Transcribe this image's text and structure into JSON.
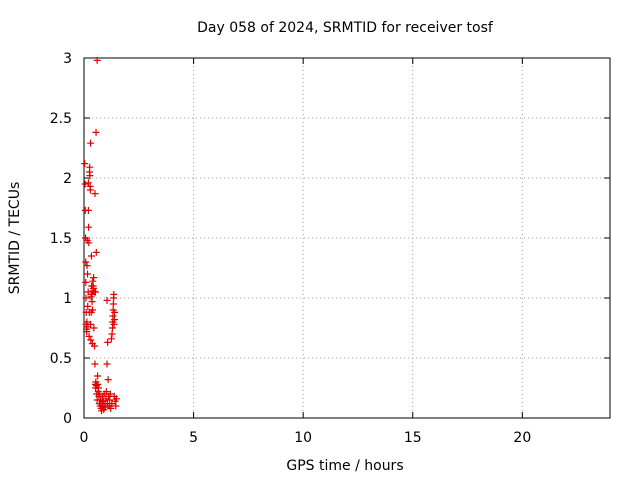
{
  "chart_data": {
    "type": "scatter",
    "title": "Day 058 of 2024, SRMTID for receiver tosf",
    "xlabel": "GPS time / hours",
    "ylabel": "SRMTID / TECUs",
    "xlim": [
      0,
      24
    ],
    "ylim": [
      0,
      3
    ],
    "xticks": [
      0,
      5,
      10,
      15,
      20
    ],
    "yticks": [
      0,
      0.5,
      1,
      1.5,
      2,
      2.5,
      3
    ],
    "grid": true,
    "legend": "none",
    "marker": "+",
    "color": "#e00000",
    "series": [
      {
        "points": [
          [
            0.03,
            2.12
          ],
          [
            0.05,
            1.95
          ],
          [
            0.06,
            1.73
          ],
          [
            0.07,
            1.5
          ],
          [
            0.08,
            1.3
          ],
          [
            0.08,
            1.13
          ],
          [
            0.09,
            1.0
          ],
          [
            0.1,
            0.88
          ],
          [
            0.1,
            0.78
          ],
          [
            0.11,
            0.74
          ],
          [
            0.12,
            0.72
          ],
          [
            0.13,
            0.8
          ],
          [
            0.14,
            1.27
          ],
          [
            0.15,
            1.48
          ],
          [
            0.16,
            1.2
          ],
          [
            0.17,
            0.93
          ],
          [
            0.18,
            0.76
          ],
          [
            0.19,
            1.05
          ],
          [
            0.2,
            1.73
          ],
          [
            0.2,
            1.96
          ],
          [
            0.21,
            1.59
          ],
          [
            0.22,
            1.46
          ],
          [
            0.23,
            0.68
          ],
          [
            0.24,
            0.88
          ],
          [
            0.25,
            2.05
          ],
          [
            0.26,
            2.09
          ],
          [
            0.27,
            2.02
          ],
          [
            0.28,
            1.93
          ],
          [
            0.29,
            1.9
          ],
          [
            0.3,
            2.29
          ],
          [
            0.3,
            0.78
          ],
          [
            0.31,
            0.65
          ],
          [
            0.32,
            1.01
          ],
          [
            0.33,
            0.88
          ],
          [
            0.34,
            1.35
          ],
          [
            0.35,
            1.1
          ],
          [
            0.36,
            1.03
          ],
          [
            0.37,
            0.97
          ],
          [
            0.38,
            0.62
          ],
          [
            0.39,
            0.9
          ],
          [
            0.4,
            1.14
          ],
          [
            0.41,
            1.06
          ],
          [
            0.42,
            1.1
          ],
          [
            0.43,
            1.08
          ],
          [
            0.44,
            1.17
          ],
          [
            0.45,
            0.75
          ],
          [
            0.46,
            1.05
          ],
          [
            0.48,
            0.6
          ],
          [
            0.5,
            1.87
          ],
          [
            0.5,
            0.45
          ],
          [
            0.52,
            1.05
          ],
          [
            0.52,
            0.28
          ],
          [
            0.53,
            0.25
          ],
          [
            0.54,
            0.3
          ],
          [
            0.55,
            2.38
          ],
          [
            0.56,
            1.38
          ],
          [
            0.57,
            0.27
          ],
          [
            0.58,
            0.2
          ],
          [
            0.6,
            2.98
          ],
          [
            0.6,
            0.15
          ],
          [
            0.62,
            0.35
          ],
          [
            0.63,
            0.28
          ],
          [
            0.65,
            0.22
          ],
          [
            0.66,
            0.25
          ],
          [
            0.68,
            0.18
          ],
          [
            0.7,
            0.12
          ],
          [
            0.72,
            0.2
          ],
          [
            0.74,
            0.1
          ],
          [
            0.76,
            0.15
          ],
          [
            0.78,
            0.08
          ],
          [
            0.8,
            0.06
          ],
          [
            0.82,
            0.12
          ],
          [
            0.84,
            0.18
          ],
          [
            0.86,
            0.1
          ],
          [
            0.88,
            0.14
          ],
          [
            0.9,
            0.07
          ],
          [
            0.92,
            0.2
          ],
          [
            0.95,
            0.12
          ],
          [
            0.97,
            0.09
          ],
          [
            1.0,
            0.16
          ],
          [
            1.02,
            0.22
          ],
          [
            1.05,
            0.45
          ],
          [
            1.05,
            0.98
          ],
          [
            1.07,
            0.12
          ],
          [
            1.08,
            0.63
          ],
          [
            1.1,
            0.32
          ],
          [
            1.12,
            0.18
          ],
          [
            1.15,
            0.1
          ],
          [
            1.17,
            0.15
          ],
          [
            1.2,
            0.2
          ],
          [
            1.22,
            0.08
          ],
          [
            1.25,
            0.66
          ],
          [
            1.27,
            0.12
          ],
          [
            1.28,
            0.7
          ],
          [
            1.3,
            0.75
          ],
          [
            1.31,
            0.8
          ],
          [
            1.32,
            0.85
          ],
          [
            1.33,
            0.9
          ],
          [
            1.34,
            0.95
          ],
          [
            1.35,
            1.0
          ],
          [
            1.36,
            1.03
          ],
          [
            1.37,
            0.78
          ],
          [
            1.38,
            0.18
          ],
          [
            1.39,
            0.82
          ],
          [
            1.4,
            0.88
          ],
          [
            1.42,
            0.14
          ],
          [
            1.45,
            0.1
          ],
          [
            1.48,
            0.16
          ]
        ]
      }
    ]
  }
}
